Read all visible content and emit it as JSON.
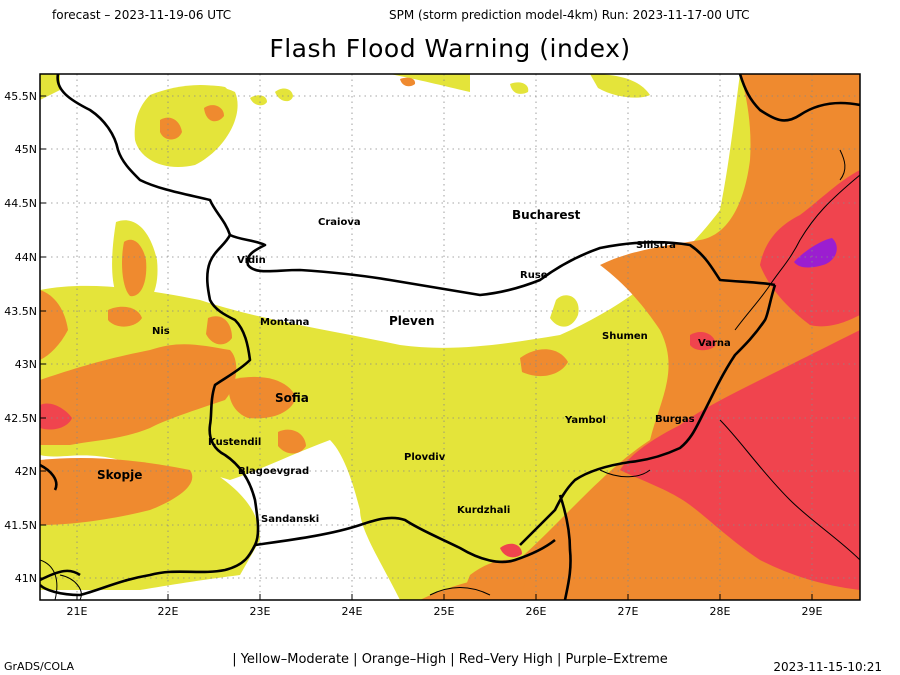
{
  "header": {
    "forecast": "forecast – 2023-11-19-06 UTC",
    "model_run": "SPM (storm prediction model-4km) Run: 2023-11-17-00 UTC"
  },
  "title": "Flash Flood Warning (index)",
  "axes": {
    "lat_labels": [
      "45.5N",
      "45N",
      "44.5N",
      "44N",
      "43.5N",
      "43N",
      "42.5N",
      "42N",
      "41.5N",
      "41N"
    ],
    "lon_labels": [
      "21E",
      "22E",
      "23E",
      "24E",
      "25E",
      "26E",
      "27E",
      "28E",
      "29E"
    ]
  },
  "cities": [
    {
      "name": "Bucharest",
      "size": "big"
    },
    {
      "name": "Craiova",
      "size": "small"
    },
    {
      "name": "Vidin",
      "size": "small"
    },
    {
      "name": "Silistra",
      "size": "small"
    },
    {
      "name": "Ruse",
      "size": "small"
    },
    {
      "name": "Nis",
      "size": "small"
    },
    {
      "name": "Montana",
      "size": "small"
    },
    {
      "name": "Pleven",
      "size": "big"
    },
    {
      "name": "Shumen",
      "size": "small"
    },
    {
      "name": "Varna",
      "size": "small"
    },
    {
      "name": "Sofia",
      "size": "big"
    },
    {
      "name": "Yambol",
      "size": "small"
    },
    {
      "name": "Burgas",
      "size": "small"
    },
    {
      "name": "Kustendil",
      "size": "small"
    },
    {
      "name": "Skopje",
      "size": "big"
    },
    {
      "name": "Plovdiv",
      "size": "small"
    },
    {
      "name": "Blagoevgrad",
      "size": "small"
    },
    {
      "name": "Sandanski",
      "size": "small"
    },
    {
      "name": "Kurdzhali",
      "size": "small"
    }
  ],
  "colors": {
    "moderate": "#e4e43a",
    "high": "#ef8a2f",
    "very_high": "#f0444e",
    "extreme": "#9b1ed0",
    "border": "#000000"
  },
  "legend": "| Yellow–Moderate | Orange–High | Red–Very High | Purple–Extreme",
  "footer": {
    "software": "GrADS/COLA",
    "timestamp": "2023-11-15-10:21"
  }
}
